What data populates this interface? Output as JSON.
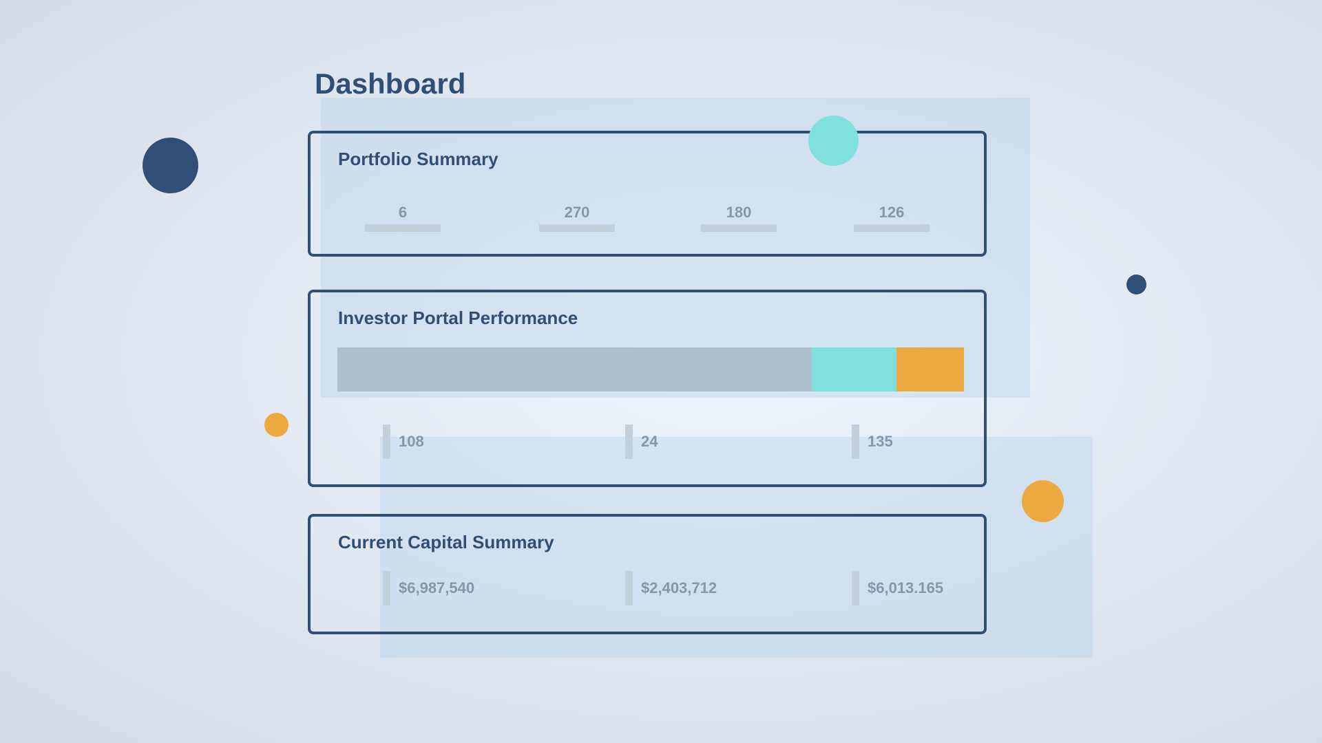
{
  "page": {
    "title": "Dashboard"
  },
  "portfolio_summary": {
    "title": "Portfolio Summary",
    "stats": [
      "6",
      "270",
      "180",
      "126"
    ]
  },
  "investor_performance": {
    "title": "Investor Portal Performance",
    "segments": [
      {
        "fraction": 0.757,
        "color": "#adbfcd"
      },
      {
        "fraction": 0.135,
        "color": "#7fe0de"
      },
      {
        "fraction": 0.108,
        "color": "#eca93f"
      }
    ],
    "metrics": [
      "108",
      "24",
      "135"
    ]
  },
  "capital_summary": {
    "title": "Current Capital Summary",
    "values": [
      "$6,987,540",
      "$2,403,712",
      "$6,013.165"
    ]
  },
  "colors": {
    "navy": "#2f4f77",
    "teal": "#7fe0de",
    "orange": "#eca93f",
    "gray_bar": "#adbfcd"
  }
}
